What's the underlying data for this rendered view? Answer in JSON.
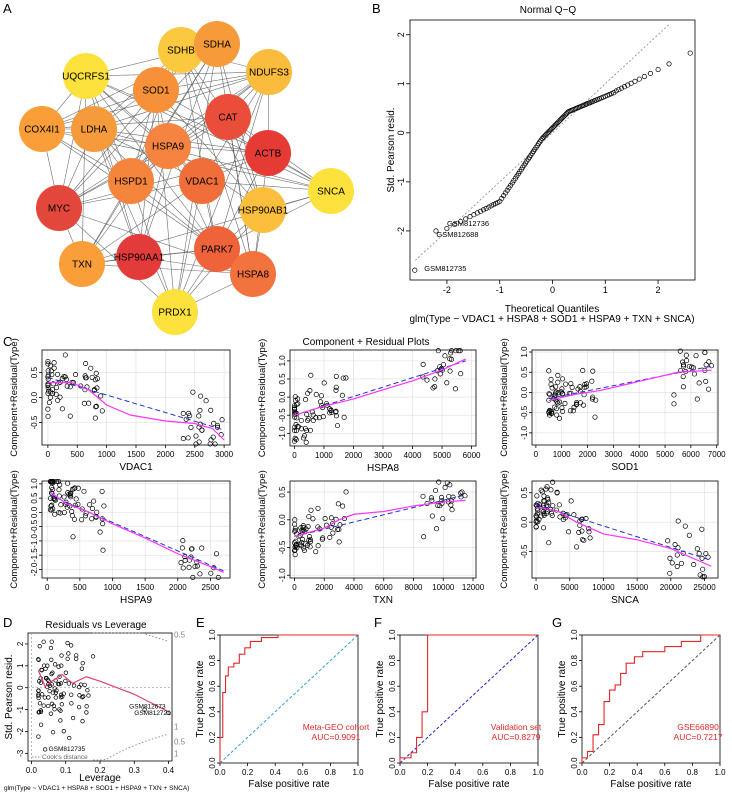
{
  "panel_labels": [
    "A",
    "B",
    "C",
    "D",
    "E",
    "F",
    "G"
  ],
  "chart_data": [
    {
      "id": "A",
      "type": "network",
      "nodes": [
        {
          "name": "SDHB",
          "color": "#fbc93f"
        },
        {
          "name": "SDHA",
          "color": "#f79a3a"
        },
        {
          "name": "UQCRFS1",
          "color": "#fde23d"
        },
        {
          "name": "NDUFS3",
          "color": "#fbbb3c"
        },
        {
          "name": "SOD1",
          "color": "#f6913a"
        },
        {
          "name": "COX4I1",
          "color": "#f99e39"
        },
        {
          "name": "LDHA",
          "color": "#f59b3b"
        },
        {
          "name": "CAT",
          "color": "#ea4e3a"
        },
        {
          "name": "HSPA9",
          "color": "#f68440"
        },
        {
          "name": "ACTB",
          "color": "#e63b35"
        },
        {
          "name": "HSPD1",
          "color": "#f5853d"
        },
        {
          "name": "VDAC1",
          "color": "#ef6e3a"
        },
        {
          "name": "SNCA",
          "color": "#fde23d"
        },
        {
          "name": "MYC",
          "color": "#e3463a"
        },
        {
          "name": "HSP90AB1",
          "color": "#fbbe3d"
        },
        {
          "name": "PARK7",
          "color": "#ef633a"
        },
        {
          "name": "TXN",
          "color": "#f99e39"
        },
        {
          "name": "HSP90AA1",
          "color": "#e23b3a"
        },
        {
          "name": "HSPA8",
          "color": "#f2733d"
        },
        {
          "name": "PRDX1",
          "color": "#fde23d"
        }
      ]
    },
    {
      "id": "B",
      "type": "scatter",
      "title": "Normal Q−Q",
      "xlabel": "Theoretical Quantiles",
      "ylabel": "Std. Pearson resid.",
      "xlim": [
        -2.7,
        2.7
      ],
      "ylim": [
        -3,
        2.3
      ],
      "xticks": [
        -2,
        -1,
        0,
        1,
        2
      ],
      "yticks": [
        -2,
        -1,
        0,
        1,
        2
      ],
      "annotations": [
        "GSM812736",
        "GSM812688",
        "GSM812735"
      ],
      "caption": "glm(Type ~ VDAC1 + HSPA8 + SOD1 + HSPA9 + TXN + SNCA)"
    },
    {
      "id": "C",
      "type": "scatter",
      "title": "Component + Residual Plots",
      "ylabel": "Component+Residual(Type)",
      "subplots": [
        {
          "xlabel": "VDAC1",
          "xlim": [
            -100,
            3100
          ],
          "ylim": [
            -0.95,
            0.95
          ],
          "xticks": [
            0,
            500,
            1000,
            1500,
            2000,
            2500,
            3000
          ],
          "yticks": [
            -0.5,
            0,
            0.5
          ],
          "yticklabels": [
            "-0.5",
            "0.0",
            "0.5"
          ],
          "dash": [
            [
              0,
              0.4
            ],
            [
              3000,
              -0.65
            ]
          ],
          "smooth": [
            [
              0,
              0.3
            ],
            [
              400,
              0.3
            ],
            [
              700,
              0.15
            ],
            [
              1000,
              -0.15
            ],
            [
              1400,
              -0.35
            ],
            [
              2000,
              -0.47
            ],
            [
              2500,
              -0.52
            ],
            [
              2800,
              -0.62
            ],
            [
              3000,
              -0.85
            ]
          ]
        },
        {
          "xlabel": "HSPA8",
          "xlim": [
            -150,
            6150
          ],
          "ylim": [
            -1.35,
            1.3
          ],
          "xticks": [
            0,
            1000,
            2000,
            3000,
            4000,
            5000,
            6000
          ],
          "yticks": [
            -1,
            -0.5,
            0,
            0.5,
            1
          ],
          "yticklabels": [
            "-1.0",
            "-0.5",
            "0.0",
            "0.5",
            "1.0"
          ],
          "dash": [
            [
              0,
              -0.5
            ],
            [
              5800,
              1.0
            ]
          ],
          "smooth": [
            [
              0,
              -0.5
            ],
            [
              1000,
              -0.25
            ],
            [
              2000,
              -0.05
            ],
            [
              3000,
              0.2
            ],
            [
              4000,
              0.45
            ],
            [
              5000,
              0.75
            ],
            [
              5800,
              1.05
            ]
          ]
        },
        {
          "xlabel": "SOD1",
          "xlim": [
            -150,
            7050
          ],
          "ylim": [
            -1.3,
            1.05
          ],
          "xticks": [
            0,
            1000,
            2000,
            3000,
            4000,
            5000,
            6000,
            7000
          ],
          "yticks": [
            -1,
            -0.5,
            0,
            0.5,
            1
          ],
          "yticklabels": [
            "-1.0",
            "-0.5",
            "0.0",
            "0.5",
            "1.0"
          ],
          "dash": [
            [
              500,
              -0.15
            ],
            [
              6800,
              0.65
            ]
          ],
          "smooth": [
            [
              500,
              -0.2
            ],
            [
              1500,
              -0.05
            ],
            [
              2500,
              0.05
            ],
            [
              3500,
              0.2
            ],
            [
              4500,
              0.35
            ],
            [
              5500,
              0.5
            ],
            [
              6800,
              0.55
            ]
          ]
        },
        {
          "xlabel": "HSPA9",
          "xlim": [
            -80,
            2800
          ],
          "ylim": [
            -2.3,
            1.1
          ],
          "xticks": [
            0,
            500,
            1000,
            1500,
            2000,
            2500
          ],
          "yticks": [
            -2,
            -1.5,
            -1,
            -0.5,
            0,
            0.5,
            1
          ],
          "yticklabels": [
            "-2.0",
            "-1.5",
            "-1.0",
            "-0.5",
            "0.0",
            "0.5",
            "1.0"
          ],
          "dash": [
            [
              50,
              0.6
            ],
            [
              2700,
              -2.05
            ]
          ],
          "smooth": [
            [
              50,
              0.7
            ],
            [
              300,
              0.3
            ],
            [
              600,
              0.05
            ],
            [
              1000,
              -0.4
            ],
            [
              1500,
              -0.9
            ],
            [
              2000,
              -1.45
            ],
            [
              2500,
              -1.9
            ],
            [
              2700,
              -2.1
            ]
          ]
        },
        {
          "xlabel": "TXN",
          "xlim": [
            -300,
            12200
          ],
          "ylim": [
            -1.05,
            0.7
          ],
          "xticks": [
            0,
            2000,
            4000,
            6000,
            8000,
            10000,
            12000
          ],
          "yticks": [
            -1,
            -0.5,
            0,
            0.5
          ],
          "yticklabels": [
            "-1.0",
            "-0.5",
            "0.0",
            "0.5"
          ],
          "dash": [
            [
              0,
              -0.3
            ],
            [
              11500,
              0.45
            ]
          ],
          "smooth": [
            [
              0,
              -0.3
            ],
            [
              2000,
              -0.15
            ],
            [
              3000,
              0.0
            ],
            [
              4000,
              0.1
            ],
            [
              6000,
              0.15
            ],
            [
              8000,
              0.25
            ],
            [
              10000,
              0.32
            ],
            [
              11500,
              0.35
            ]
          ]
        },
        {
          "xlabel": "SNCA",
          "xlim": [
            -600,
            27000
          ],
          "ylim": [
            -0.95,
            0.7
          ],
          "xticks": [
            0,
            5000,
            10000,
            15000,
            20000,
            25000
          ],
          "yticks": [
            -0.5,
            0,
            0.5
          ],
          "yticklabels": [
            "-0.5",
            "0.0",
            "0.5"
          ],
          "dash": [
            [
              0,
              0.3
            ],
            [
              26000,
              -0.65
            ]
          ],
          "smooth": [
            [
              0,
              0.25
            ],
            [
              3000,
              0.2
            ],
            [
              6000,
              0.0
            ],
            [
              10000,
              -0.2
            ],
            [
              15000,
              -0.3
            ],
            [
              20000,
              -0.45
            ],
            [
              26000,
              -0.75
            ]
          ]
        }
      ]
    },
    {
      "id": "D",
      "type": "scatter",
      "title": "Residuals vs Leverage",
      "xlabel": "Leverage",
      "ylabel": "Std. Pearson resid.",
      "xlim": [
        -0.01,
        0.41
      ],
      "ylim": [
        -3.35,
        2.5
      ],
      "xticks": [
        0.0,
        0.1,
        0.2,
        0.3,
        0.4
      ],
      "xticklabels": [
        "0.0",
        "0.1",
        "0.2",
        "0.3",
        "0.4"
      ],
      "yticks": [
        -3,
        -2,
        -1,
        0,
        1,
        2
      ],
      "right_labels": [
        "0.5",
        "1",
        "0.5",
        "1"
      ],
      "annotations": [
        "GSM812673",
        "GSM812721",
        "GSM812735"
      ],
      "legend": "Cook's distance",
      "caption": "glm(Type ~ VDAC1 + HSPA8 + SOD1 + HSPA9 + TXN + SNCA)"
    },
    {
      "id": "E",
      "type": "roc",
      "name": "Meta-GEO cohort",
      "auc": "AUC=0.9091",
      "xlabel": "False positive rate",
      "ylabel": "True positive rate",
      "ticks": [
        "0.0",
        "0.2",
        "0.4",
        "0.6",
        "0.8",
        "1.0"
      ],
      "diag_color": "#2a9fd6",
      "curve": [
        [
          0,
          0
        ],
        [
          0,
          0.2
        ],
        [
          0.02,
          0.2
        ],
        [
          0.02,
          0.55
        ],
        [
          0.04,
          0.55
        ],
        [
          0.04,
          0.68
        ],
        [
          0.06,
          0.68
        ],
        [
          0.06,
          0.75
        ],
        [
          0.1,
          0.75
        ],
        [
          0.1,
          0.78
        ],
        [
          0.14,
          0.78
        ],
        [
          0.14,
          0.85
        ],
        [
          0.18,
          0.85
        ],
        [
          0.18,
          0.9
        ],
        [
          0.22,
          0.9
        ],
        [
          0.22,
          0.95
        ],
        [
          0.3,
          0.95
        ],
        [
          0.3,
          0.98
        ],
        [
          0.42,
          0.98
        ],
        [
          0.42,
          1.0
        ],
        [
          1,
          1
        ]
      ]
    },
    {
      "id": "F",
      "type": "roc",
      "name": "Validation set",
      "auc": "AUC=0.8279",
      "xlabel": "False positive rate",
      "ylabel": "True positive rate",
      "ticks": [
        "0.0",
        "0.2",
        "0.4",
        "0.6",
        "0.8",
        "1.0"
      ],
      "diag_color": "#1f1fd6",
      "curve": [
        [
          0,
          0
        ],
        [
          0,
          0.04
        ],
        [
          0.08,
          0.04
        ],
        [
          0.08,
          0.08
        ],
        [
          0.12,
          0.08
        ],
        [
          0.12,
          0.2
        ],
        [
          0.16,
          0.2
        ],
        [
          0.16,
          0.4
        ],
        [
          0.2,
          0.4
        ],
        [
          0.2,
          1.0
        ],
        [
          1,
          1
        ]
      ]
    },
    {
      "id": "G",
      "type": "roc",
      "name": "GSE66890",
      "auc": "AUC=0.7217",
      "xlabel": "False positive rate",
      "ylabel": "True positive rate",
      "ticks": [
        "0.0",
        "0.2",
        "0.4",
        "0.6",
        "0.8",
        "1.0"
      ],
      "diag_color": "#555555",
      "curve": [
        [
          0,
          0
        ],
        [
          0,
          0.04
        ],
        [
          0.04,
          0.04
        ],
        [
          0.04,
          0.09
        ],
        [
          0.08,
          0.09
        ],
        [
          0.08,
          0.22
        ],
        [
          0.12,
          0.22
        ],
        [
          0.12,
          0.3
        ],
        [
          0.16,
          0.3
        ],
        [
          0.16,
          0.48
        ],
        [
          0.2,
          0.48
        ],
        [
          0.2,
          0.57
        ],
        [
          0.24,
          0.57
        ],
        [
          0.24,
          0.61
        ],
        [
          0.28,
          0.61
        ],
        [
          0.28,
          0.7
        ],
        [
          0.32,
          0.7
        ],
        [
          0.32,
          0.78
        ],
        [
          0.38,
          0.78
        ],
        [
          0.38,
          0.83
        ],
        [
          0.44,
          0.83
        ],
        [
          0.44,
          0.87
        ],
        [
          0.6,
          0.87
        ],
        [
          0.6,
          0.91
        ],
        [
          0.72,
          0.91
        ],
        [
          0.72,
          0.95
        ],
        [
          0.86,
          0.95
        ],
        [
          0.86,
          1.0
        ],
        [
          1,
          1
        ]
      ]
    }
  ]
}
